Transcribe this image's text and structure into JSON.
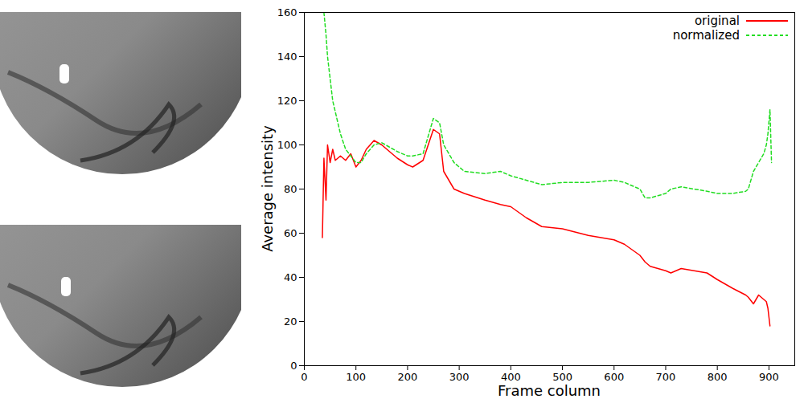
{
  "chart_data": {
    "type": "line",
    "x_label": "Frame column",
    "y_label": "Average intensity",
    "x": [
      35,
      38,
      42,
      45,
      50,
      55,
      60,
      70,
      80,
      90,
      100,
      110,
      120,
      135,
      150,
      180,
      200,
      210,
      230,
      250,
      262,
      270,
      290,
      310,
      350,
      380,
      400,
      430,
      460,
      500,
      550,
      600,
      620,
      650,
      660,
      670,
      700,
      710,
      730,
      780,
      800,
      830,
      855,
      860,
      870,
      880,
      890,
      895,
      898,
      902,
      905
    ],
    "series": [
      {
        "name": "original",
        "color": "#ff0000",
        "line_style": "solid",
        "values": [
          58,
          94,
          75,
          100,
          92,
          98,
          93,
          95,
          93,
          96,
          90,
          93,
          98,
          102,
          100,
          94,
          91,
          90,
          93,
          107,
          105,
          88,
          80,
          78,
          75,
          73,
          72,
          67,
          63,
          62,
          59,
          57,
          55,
          50,
          47,
          45,
          43,
          42,
          44,
          42,
          39,
          35,
          32,
          31,
          28,
          32,
          30,
          29,
          26,
          18,
          null
        ]
      },
      {
        "name": "normalized",
        "color": "#22dd22",
        "line_style": "dashed",
        "values": [
          null,
          160,
          150,
          140,
          130,
          120,
          115,
          105,
          98,
          95,
          92,
          92,
          96,
          100,
          101,
          97,
          95,
          95,
          96,
          112,
          110,
          100,
          92,
          88,
          87,
          88,
          86,
          84,
          82,
          83,
          83,
          84,
          83,
          80,
          76,
          76,
          78,
          80,
          81,
          79,
          78,
          78,
          79,
          80,
          88,
          92,
          96,
          100,
          105,
          116,
          92
        ]
      }
    ],
    "xlim": [
      0,
      950
    ],
    "ylim": [
      0,
      160
    ],
    "xticks": [
      0,
      100,
      200,
      300,
      400,
      500,
      600,
      700,
      800,
      900
    ],
    "yticks": [
      0,
      20,
      40,
      60,
      80,
      100,
      120,
      140,
      160
    ],
    "legend": "top-right",
    "grid": false
  }
}
